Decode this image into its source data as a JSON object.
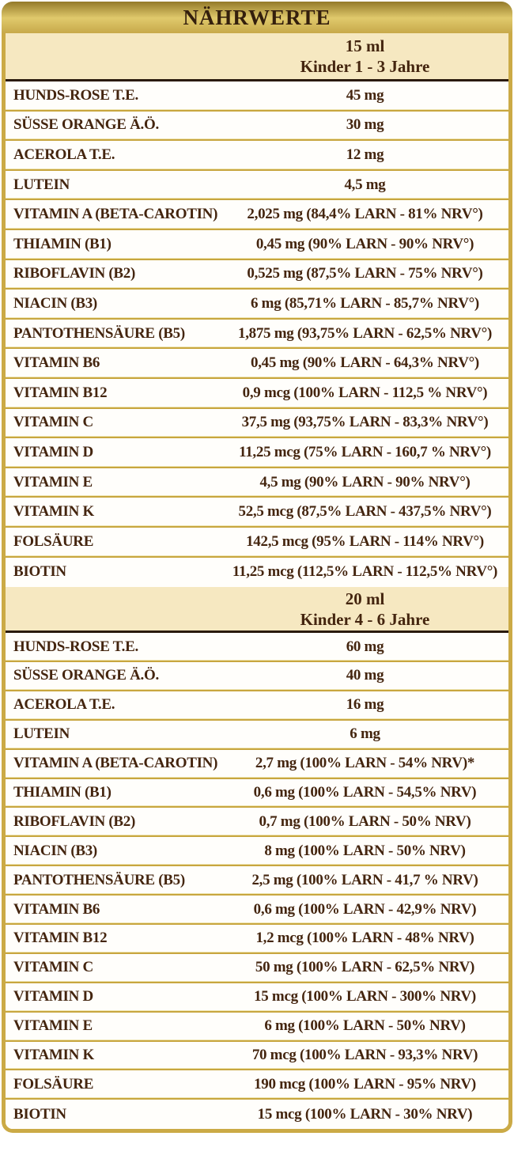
{
  "title": "NÄHRWERTE",
  "colors": {
    "band_gold_top": "#937929",
    "band_gold_mid": "#e0c96c",
    "band_gold_bottom": "#c7a94a",
    "outer_border_gold": "#cbaa46",
    "section_header_cream": "#f6e8c1",
    "row_separator_gold": "#c8a63f",
    "header_rule_dark": "#2a1a0c",
    "text_brown": "#44250f"
  },
  "sections": [
    {
      "dose": "15 ml",
      "audience": "Kinder 1 - 3 Jahre",
      "rows": [
        {
          "label": "HUNDS-ROSE T.E.",
          "value": "45 mg"
        },
        {
          "label": "SÜSSE ORANGE Ä.Ö.",
          "value": "30 mg"
        },
        {
          "label": "ACEROLA T.E.",
          "value": "12 mg"
        },
        {
          "label": "LUTEIN",
          "value": "4,5 mg"
        },
        {
          "label": "VITAMIN A (BETA-CAROTIN)",
          "value": "2,025 mg (84,4% LARN - 81% NRV°)"
        },
        {
          "label": "THIAMIN (B1)",
          "value": "0,45 mg (90% LARN - 90% NRV°)"
        },
        {
          "label": "RIBOFLAVIN (B2)",
          "value": "0,525 mg (87,5% LARN - 75% NRV°)"
        },
        {
          "label": "NIACIN (B3)",
          "value": "6 mg (85,71% LARN - 85,7% NRV°)"
        },
        {
          "label": "PANTOTHENSÄURE (B5)",
          "value": "1,875 mg (93,75% LARN - 62,5% NRV°)"
        },
        {
          "label": "VITAMIN B6",
          "value": "0,45 mg (90% LARN - 64,3% NRV°)"
        },
        {
          "label": "VITAMIN B12",
          "value": "0,9 mcg (100% LARN - 112,5 % NRV°)"
        },
        {
          "label": "VITAMIN C",
          "value": "37,5 mg (93,75% LARN - 83,3% NRV°)"
        },
        {
          "label": "VITAMIN D",
          "value": "11,25 mcg (75% LARN - 160,7 % NRV°)"
        },
        {
          "label": "VITAMIN E",
          "value": "4,5 mg (90% LARN - 90% NRV°)"
        },
        {
          "label": "VITAMIN K",
          "value": "52,5 mcg (87,5% LARN - 437,5% NRV°)"
        },
        {
          "label": "FOLSÄURE",
          "value": "142,5 mcg (95% LARN - 114% NRV°)"
        },
        {
          "label": "BIOTIN",
          "value": "11,25 mcg (112,5% LARN - 112,5% NRV°)"
        }
      ]
    },
    {
      "dose": "20 ml",
      "audience": "Kinder 4 - 6 Jahre",
      "rows": [
        {
          "label": "HUNDS-ROSE T.E.",
          "value": "60 mg"
        },
        {
          "label": "SÜSSE ORANGE Ä.Ö.",
          "value": "40 mg"
        },
        {
          "label": "ACEROLA T.E.",
          "value": "16 mg"
        },
        {
          "label": "LUTEIN",
          "value": "6 mg"
        },
        {
          "label": "VITAMIN A (BETA-CAROTIN)",
          "value": "2,7 mg (100% LARN - 54% NRV)*"
        },
        {
          "label": "THIAMIN (B1)",
          "value": "0,6 mg (100% LARN - 54,5% NRV)"
        },
        {
          "label": "RIBOFLAVIN (B2)",
          "value": "0,7 mg (100% LARN - 50% NRV)"
        },
        {
          "label": "NIACIN (B3)",
          "value": "8 mg (100% LARN - 50% NRV)"
        },
        {
          "label": "PANTOTHENSÄURE (B5)",
          "value": "2,5 mg (100% LARN - 41,7 % NRV)"
        },
        {
          "label": "VITAMIN B6",
          "value": "0,6 mg (100% LARN - 42,9% NRV)"
        },
        {
          "label": "VITAMIN B12",
          "value": "1,2 mcg (100% LARN - 48% NRV)"
        },
        {
          "label": "VITAMIN C",
          "value": "50 mg (100% LARN - 62,5% NRV)"
        },
        {
          "label": "VITAMIN D",
          "value": "15 mcg (100% LARN - 300% NRV)"
        },
        {
          "label": "VITAMIN E",
          "value": "6 mg (100% LARN - 50% NRV)"
        },
        {
          "label": "VITAMIN K",
          "value": "70 mcg (100% LARN - 93,3% NRV)"
        },
        {
          "label": "FOLSÄURE",
          "value": "190 mcg (100% LARN - 95% NRV)"
        },
        {
          "label": "BIOTIN",
          "value": "15 mcg (100% LARN - 30% NRV)"
        }
      ]
    }
  ]
}
